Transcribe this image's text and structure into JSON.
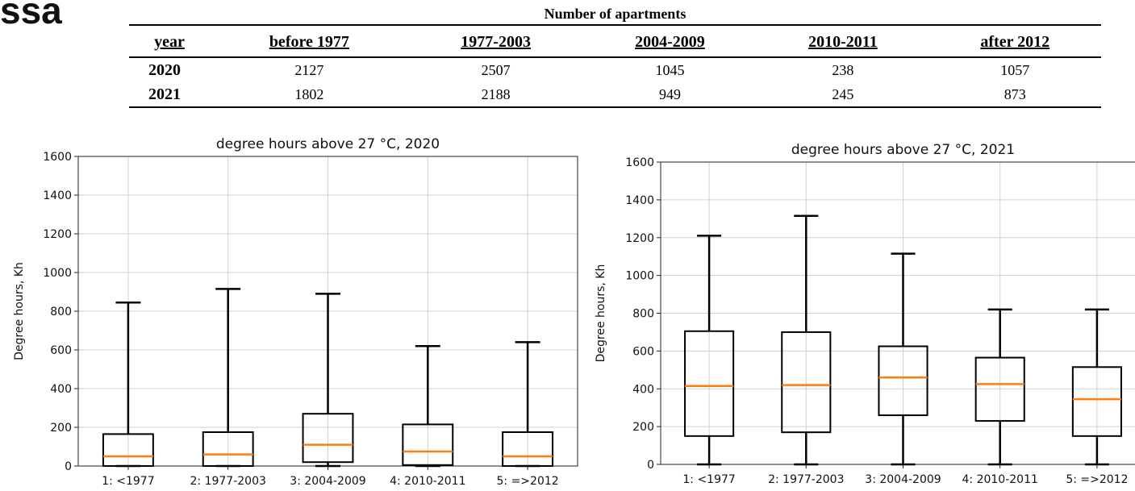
{
  "page_fragment": "ssa",
  "table": {
    "title": "Number of apartments",
    "headers": [
      "year",
      "before 1977",
      "1977-2003",
      "2004-2009",
      "2010-2011",
      "after 2012"
    ],
    "rows": [
      {
        "year": "2020",
        "values": [
          "2127",
          "2507",
          "1045",
          "238",
          "1057"
        ]
      },
      {
        "year": "2021",
        "values": [
          "1802",
          "2188",
          "949",
          "245",
          "873"
        ]
      }
    ]
  },
  "chart_data": [
    {
      "type": "box",
      "title": "degree hours above 27 °C, 2020",
      "xlabel": "",
      "ylabel": "Degree hours, Kh",
      "ylim": [
        0,
        1600
      ],
      "yticks": [
        0,
        200,
        400,
        600,
        800,
        1000,
        1200,
        1400,
        1600
      ],
      "grid": true,
      "categories": [
        "1: <1977",
        "2: 1977-2003",
        "3: 2004-2009",
        "4: 2010-2011",
        "5: =>2012"
      ],
      "boxes": [
        {
          "whisker_low": 0,
          "q1": 0,
          "median": 50,
          "q3": 165,
          "whisker_high": 845
        },
        {
          "whisker_low": 0,
          "q1": 0,
          "median": 60,
          "q3": 175,
          "whisker_high": 915
        },
        {
          "whisker_low": 0,
          "q1": 20,
          "median": 110,
          "q3": 270,
          "whisker_high": 890
        },
        {
          "whisker_low": 0,
          "q1": 5,
          "median": 75,
          "q3": 215,
          "whisker_high": 620
        },
        {
          "whisker_low": 0,
          "q1": 0,
          "median": 50,
          "q3": 175,
          "whisker_high": 640
        }
      ],
      "colors": {
        "box": "#000000",
        "median": "#ff7f0e",
        "grid": "#d0d0d0"
      }
    },
    {
      "type": "box",
      "title": "degree hours above 27 °C, 2021",
      "xlabel": "",
      "ylabel": "Degree hours, Kh",
      "ylim": [
        0,
        1600
      ],
      "yticks": [
        0,
        200,
        400,
        600,
        800,
        1000,
        1200,
        1400,
        1600
      ],
      "grid": true,
      "categories": [
        "1: <1977",
        "2: 1977-2003",
        "3: 2004-2009",
        "4: 2010-2011",
        "5: =>2012"
      ],
      "boxes": [
        {
          "whisker_low": 0,
          "q1": 150,
          "median": 415,
          "q3": 705,
          "whisker_high": 1210
        },
        {
          "whisker_low": 0,
          "q1": 170,
          "median": 420,
          "q3": 700,
          "whisker_high": 1315
        },
        {
          "whisker_low": 0,
          "q1": 260,
          "median": 460,
          "q3": 625,
          "whisker_high": 1115
        },
        {
          "whisker_low": 0,
          "q1": 230,
          "median": 425,
          "q3": 565,
          "whisker_high": 820
        },
        {
          "whisker_low": 0,
          "q1": 150,
          "median": 345,
          "q3": 515,
          "whisker_high": 820
        }
      ],
      "colors": {
        "box": "#000000",
        "median": "#ff7f0e",
        "grid": "#d0d0d0"
      }
    }
  ]
}
